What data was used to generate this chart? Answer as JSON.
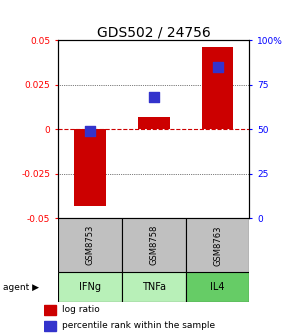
{
  "title": "GDS502 / 24756",
  "samples": [
    "GSM8753",
    "GSM8758",
    "GSM8763"
  ],
  "agents": [
    "IFNg",
    "TNFa",
    "IL4"
  ],
  "log_ratios": [
    -0.043,
    0.007,
    0.046
  ],
  "percentile_ranks": [
    49,
    68,
    85
  ],
  "ylim_left": [
    -0.05,
    0.05
  ],
  "ylim_right": [
    0,
    100
  ],
  "yticks_left": [
    -0.05,
    -0.025,
    0,
    0.025,
    0.05
  ],
  "yticks_right": [
    0,
    25,
    50,
    75,
    100
  ],
  "ytick_labels_left": [
    "-0.05",
    "-0.025",
    "0",
    "0.025",
    "0.05"
  ],
  "ytick_labels_right": [
    "0",
    "25",
    "50",
    "75",
    "100%"
  ],
  "bar_color": "#cc0000",
  "dot_color": "#3333cc",
  "sample_bg": "#c0c0c0",
  "agent_colors": [
    "#b8f0b8",
    "#b8f0b8",
    "#66cc66"
  ],
  "zero_line_color": "#cc0000",
  "title_fontsize": 10,
  "bar_width": 0.5,
  "dot_size": 45
}
